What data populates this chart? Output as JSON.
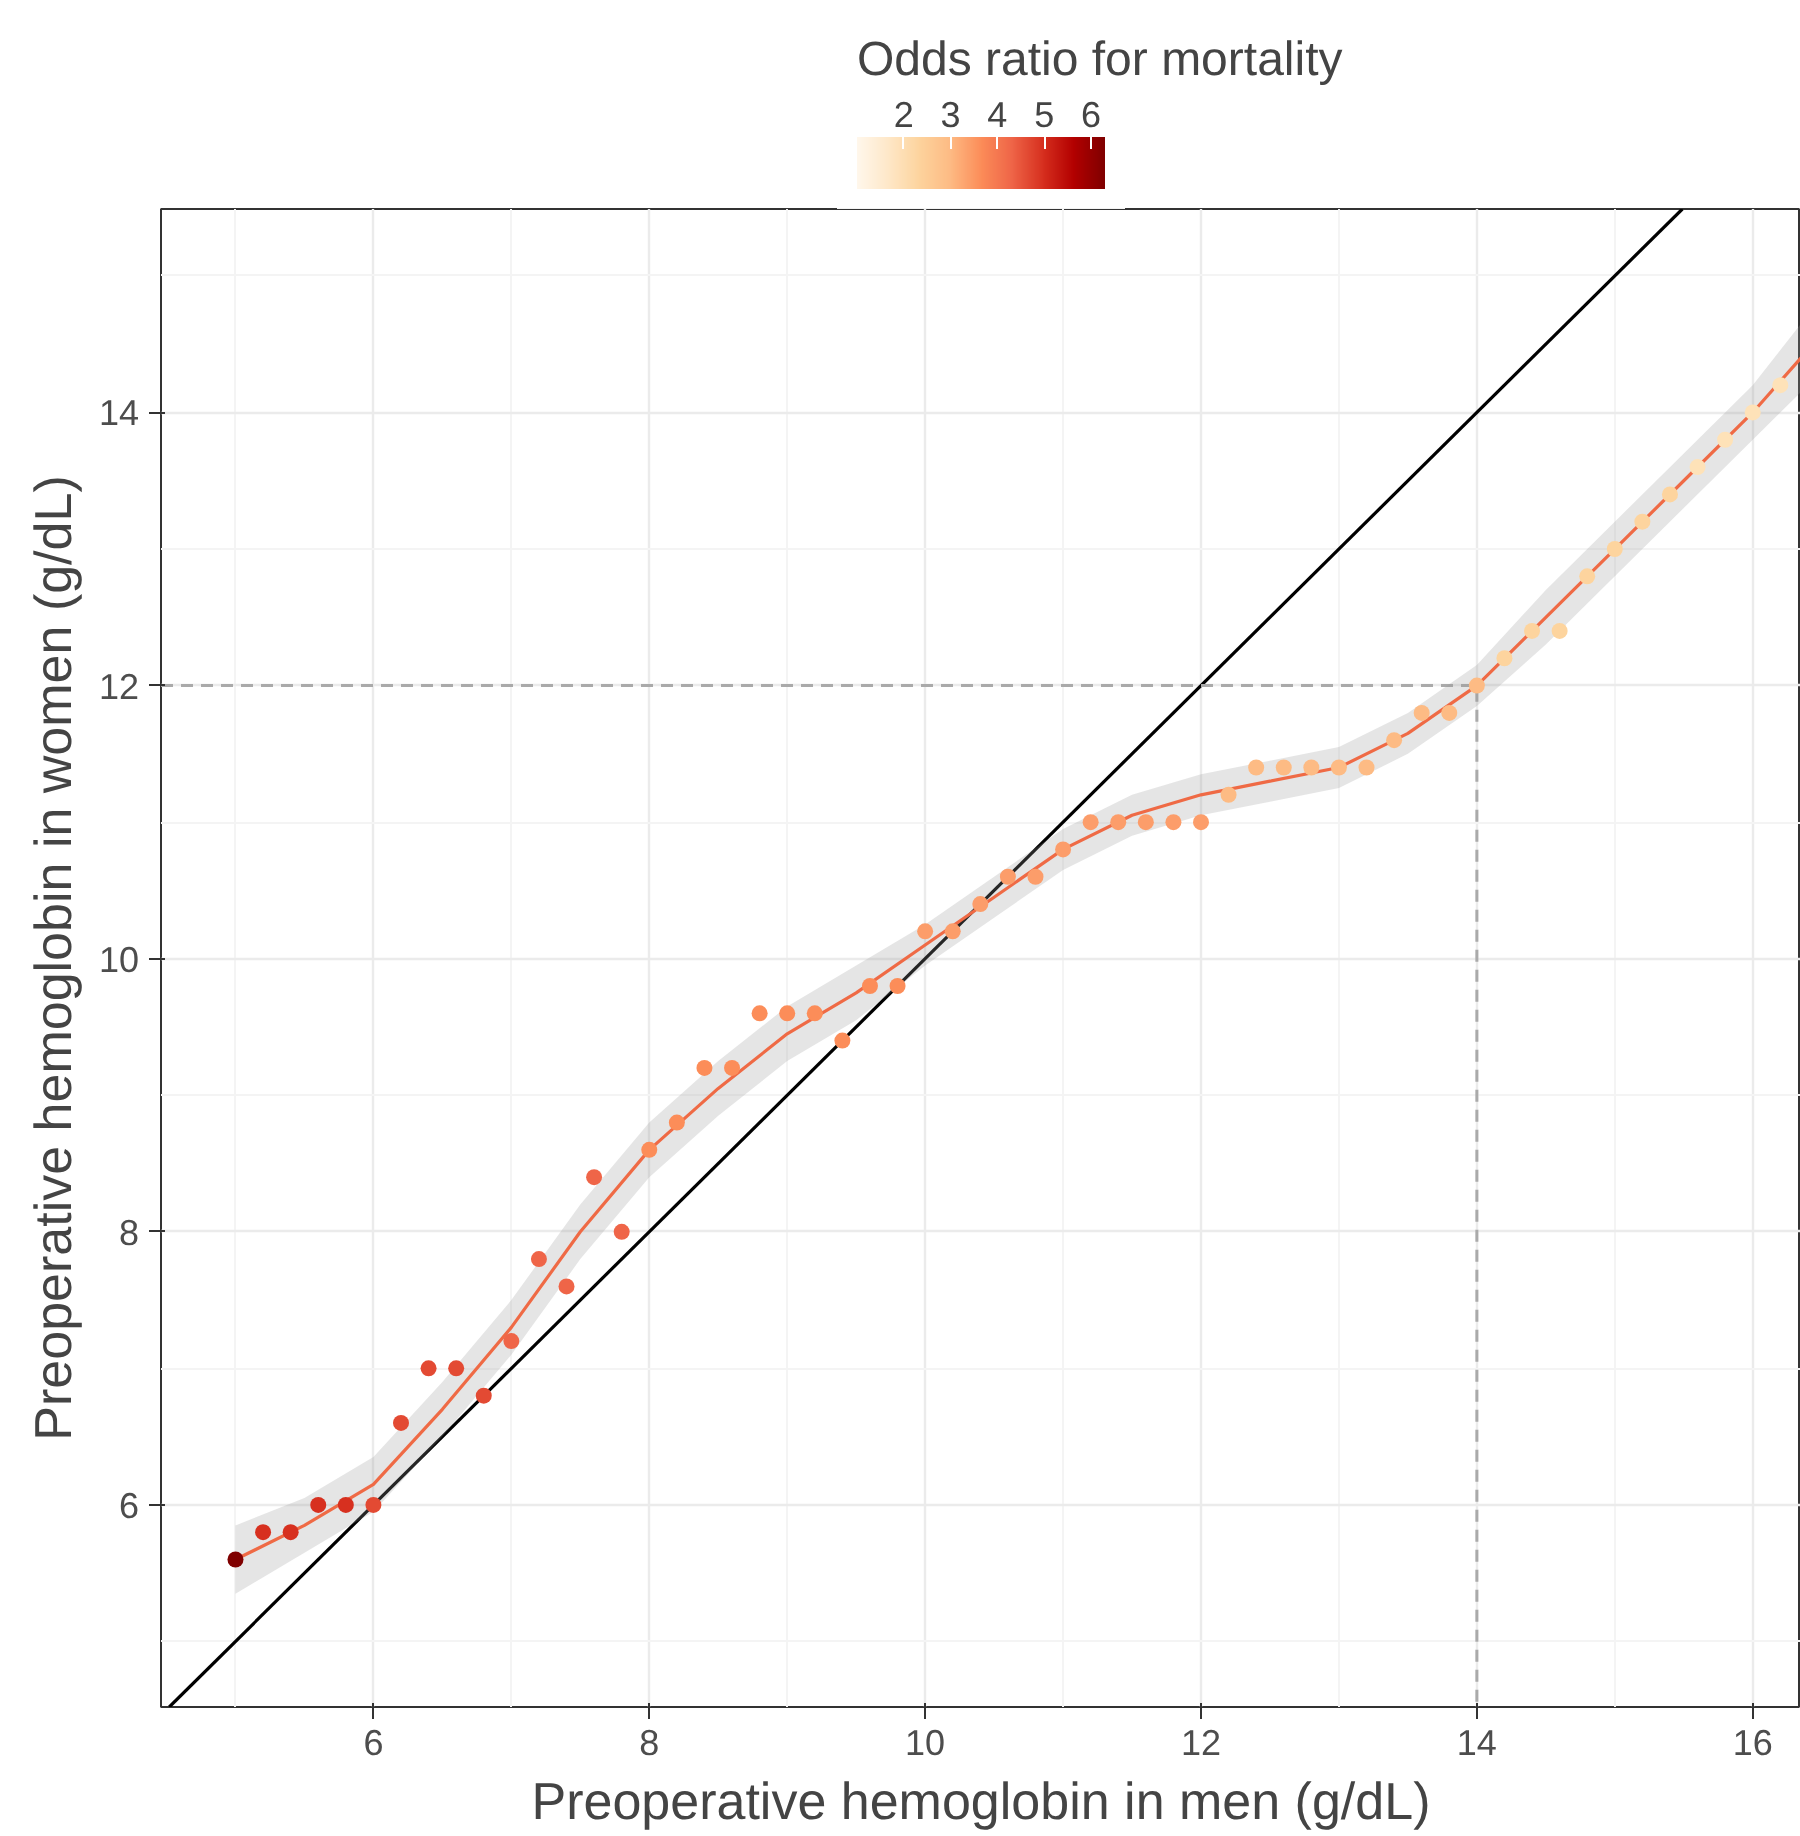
{
  "chart_data": {
    "type": "scatter",
    "xlabel": "Preoperative hemoglobin in men (g/dL)",
    "ylabel": "Preoperative hemoglobin in women (g/dL)",
    "clabel": "Odds ratio for mortality",
    "clim": [
      1.0,
      6.3
    ],
    "cticks": [
      2,
      3,
      4,
      5,
      6
    ],
    "xlim": [
      4.46,
      16.35
    ],
    "ylim": [
      4.52,
      15.49
    ],
    "xticks": [
      6,
      8,
      10,
      12,
      14,
      16
    ],
    "yticks": [
      6,
      8,
      10,
      12,
      14
    ],
    "grid": true,
    "series": [
      {
        "type": "line",
        "color": "#000000",
        "line_style": "solid",
        "x": [
          4.52,
          15.49
        ],
        "values": [
          4.52,
          15.49
        ]
      },
      {
        "type": "line",
        "color": "#aaaaaa",
        "line_style": "dashed",
        "x": [
          4.46,
          14,
          14
        ],
        "values": [
          12,
          12,
          4.52
        ]
      },
      {
        "type": "line",
        "color": "#ef6a45",
        "line_style": "solid",
        "x": [
          5,
          5.5,
          6,
          6.5,
          7,
          7.5,
          8,
          8.5,
          9,
          9.5,
          10,
          10.5,
          11,
          11.5,
          12,
          12.5,
          13,
          13.5,
          14,
          14.5,
          15,
          15.5,
          16,
          16.35
        ],
        "values": [
          5.6,
          5.85,
          6.15,
          6.7,
          7.3,
          8.0,
          8.6,
          9.05,
          9.45,
          9.75,
          10.1,
          10.45,
          10.8,
          11.05,
          11.2,
          11.3,
          11.4,
          11.65,
          12.0,
          12.5,
          13.0,
          13.5,
          14.0,
          14.4
        ],
        "lower": [
          5.35,
          5.65,
          5.95,
          6.5,
          7.1,
          7.8,
          8.4,
          8.85,
          9.25,
          9.55,
          9.95,
          10.3,
          10.65,
          10.9,
          11.05,
          11.15,
          11.25,
          11.5,
          11.85,
          12.3,
          12.8,
          13.3,
          13.8,
          14.15
        ],
        "upper": [
          5.85,
          6.05,
          6.35,
          6.9,
          7.5,
          8.2,
          8.8,
          9.25,
          9.65,
          9.95,
          10.25,
          10.6,
          10.95,
          11.2,
          11.35,
          11.45,
          11.55,
          11.8,
          12.15,
          12.7,
          13.2,
          13.7,
          14.2,
          14.65
        ]
      },
      {
        "marker": "circle",
        "x": [
          5,
          5.2,
          5.4,
          5.6,
          5.8,
          6.0,
          6.2,
          6.4,
          6.6,
          6.8,
          7.0,
          7.2,
          7.4,
          7.6,
          7.8,
          8.0,
          8.2,
          8.4,
          8.6,
          8.8,
          9.0,
          9.2,
          9.4,
          9.6,
          9.8,
          10.0,
          10.2,
          10.4,
          10.6,
          10.8,
          11.0,
          11.2,
          11.4,
          11.6,
          11.8,
          12.0,
          12.2,
          12.4,
          12.6,
          12.8,
          13.0,
          13.2,
          13.4,
          13.6,
          13.8,
          14.0,
          14.2,
          14.4,
          14.6,
          14.8,
          15.0,
          15.2,
          15.4,
          15.6,
          15.8,
          16.0,
          16.2
        ],
        "values": [
          5.6,
          5.8,
          5.8,
          6.0,
          6.0,
          6.0,
          6.6,
          7.0,
          7.0,
          6.8,
          7.2,
          7.8,
          7.6,
          8.4,
          8.0,
          8.6,
          8.8,
          9.2,
          9.2,
          9.6,
          9.6,
          9.6,
          9.4,
          9.8,
          9.8,
          10.2,
          10.2,
          10.4,
          10.6,
          10.6,
          10.8,
          11.0,
          11.0,
          11.0,
          11.0,
          11.0,
          11.2,
          11.4,
          11.4,
          11.4,
          11.4,
          11.4,
          11.6,
          11.8,
          11.8,
          12.0,
          12.2,
          12.4,
          12.4,
          12.8,
          13.0,
          13.2,
          13.4,
          13.6,
          13.8,
          14.0,
          14.2
        ],
        "colors": [
          "#7f0000",
          "#d7301f",
          "#d7301f",
          "#d7301f",
          "#d7301f",
          "#e34a33",
          "#e34a33",
          "#e34a33",
          "#e34a33",
          "#e34a33",
          "#ef6548",
          "#ef6548",
          "#ef6548",
          "#ef6548",
          "#ef6548",
          "#fc8d59",
          "#fc8d59",
          "#fc8d59",
          "#fc8d59",
          "#fc8d59",
          "#fc8d59",
          "#fc8d59",
          "#fc8d59",
          "#fc8d59",
          "#fc8d59",
          "#fc9d6a",
          "#fc9d6a",
          "#fc9d6a",
          "#fc9d6a",
          "#fc9d6a",
          "#fc9d6a",
          "#fc9d6a",
          "#fc9d6a",
          "#fc9d6a",
          "#fc9d6a",
          "#fc9d6a",
          "#fdbb84",
          "#fdbb84",
          "#fdbb84",
          "#fdbb84",
          "#fdbb84",
          "#fdbb84",
          "#fdbb84",
          "#fdbb84",
          "#fdbb84",
          "#fdbb84",
          "#fdd49e",
          "#fdd49e",
          "#fdd49e",
          "#fdd49e",
          "#fdd49e",
          "#fdd49e",
          "#fdd49e",
          "#fee2b8",
          "#fee2b8",
          "#fee2b8",
          "#fee2b8"
        ]
      }
    ]
  }
}
